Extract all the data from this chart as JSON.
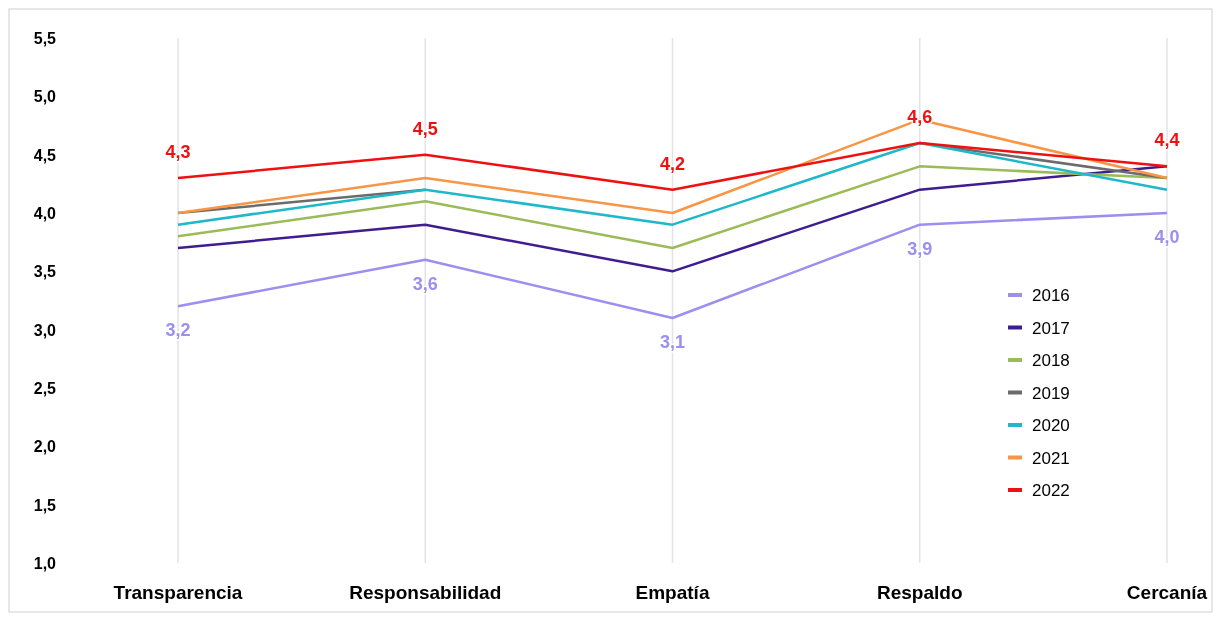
{
  "chart_data": {
    "type": "line",
    "categories": [
      "Transparencia",
      "Responsabilidad",
      "Empatía",
      "Respaldo",
      "Cercanía"
    ],
    "ylim": [
      1.0,
      5.5
    ],
    "yticks": [
      {
        "value": 1.0,
        "label": "1,0"
      },
      {
        "value": 1.5,
        "label": "1,5"
      },
      {
        "value": 2.0,
        "label": "2,0"
      },
      {
        "value": 2.5,
        "label": "2,5"
      },
      {
        "value": 3.0,
        "label": "3,0"
      },
      {
        "value": 3.5,
        "label": "3,5"
      },
      {
        "value": 4.0,
        "label": "4,0"
      },
      {
        "value": 4.5,
        "label": "4,5"
      },
      {
        "value": 5.0,
        "label": "5,0"
      },
      {
        "value": 5.5,
        "label": "5,5"
      }
    ],
    "grid": "x",
    "legend": "right",
    "marker": "none",
    "line_style": "solid",
    "series": [
      {
        "name": "2016",
        "color": "#9b8ff0",
        "values": [
          3.2,
          3.6,
          3.1,
          3.9,
          4.0
        ],
        "value_labels": [
          "3,2",
          "3,6",
          "3,1",
          "3,9",
          "4,0"
        ]
      },
      {
        "name": "2017",
        "color": "#3f1d8f",
        "values": [
          3.7,
          3.9,
          3.5,
          4.2,
          4.4
        ]
      },
      {
        "name": "2018",
        "color": "#9bbb59",
        "values": [
          3.8,
          4.1,
          3.7,
          4.4,
          4.3
        ]
      },
      {
        "name": "2019",
        "color": "#6b6b6b",
        "values": [
          4.0,
          4.2,
          null,
          4.6,
          4.3
        ]
      },
      {
        "name": "2020",
        "color": "#1fb8c8",
        "values": [
          3.9,
          4.2,
          3.9,
          4.6,
          4.2
        ]
      },
      {
        "name": "2021",
        "color": "#f79646",
        "values": [
          4.0,
          4.3,
          4.0,
          4.8,
          4.3
        ]
      },
      {
        "name": "2022",
        "color": "#ee1111",
        "values": [
          4.3,
          4.5,
          4.2,
          4.6,
          4.4
        ],
        "value_labels": [
          "4,3",
          "4,5",
          "4,2",
          "4,6",
          "4,4"
        ]
      }
    ]
  }
}
